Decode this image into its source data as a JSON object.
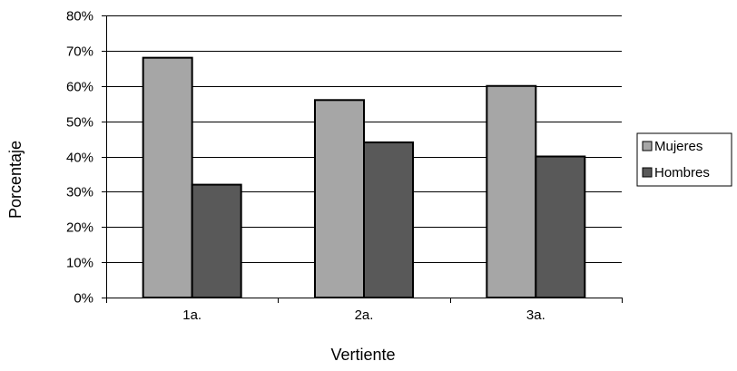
{
  "chart_data": {
    "type": "bar",
    "title": "",
    "xlabel": "Vertiente",
    "ylabel": "Porcentaje",
    "categories": [
      "1a.",
      "2a.",
      "3a."
    ],
    "series": [
      {
        "name": "Mujeres",
        "values": [
          68,
          56,
          60
        ],
        "color": "#a6a6a6"
      },
      {
        "name": "Hombres",
        "values": [
          32,
          44,
          40
        ],
        "color": "#595959"
      }
    ],
    "ylim": [
      0,
      80
    ],
    "yticks": [
      0,
      10,
      20,
      30,
      40,
      50,
      60,
      70,
      80
    ],
    "ytick_labels": [
      "0%",
      "10%",
      "20%",
      "30%",
      "40%",
      "50%",
      "60%",
      "70%",
      "80%"
    ],
    "grid": true,
    "legend": "right"
  }
}
